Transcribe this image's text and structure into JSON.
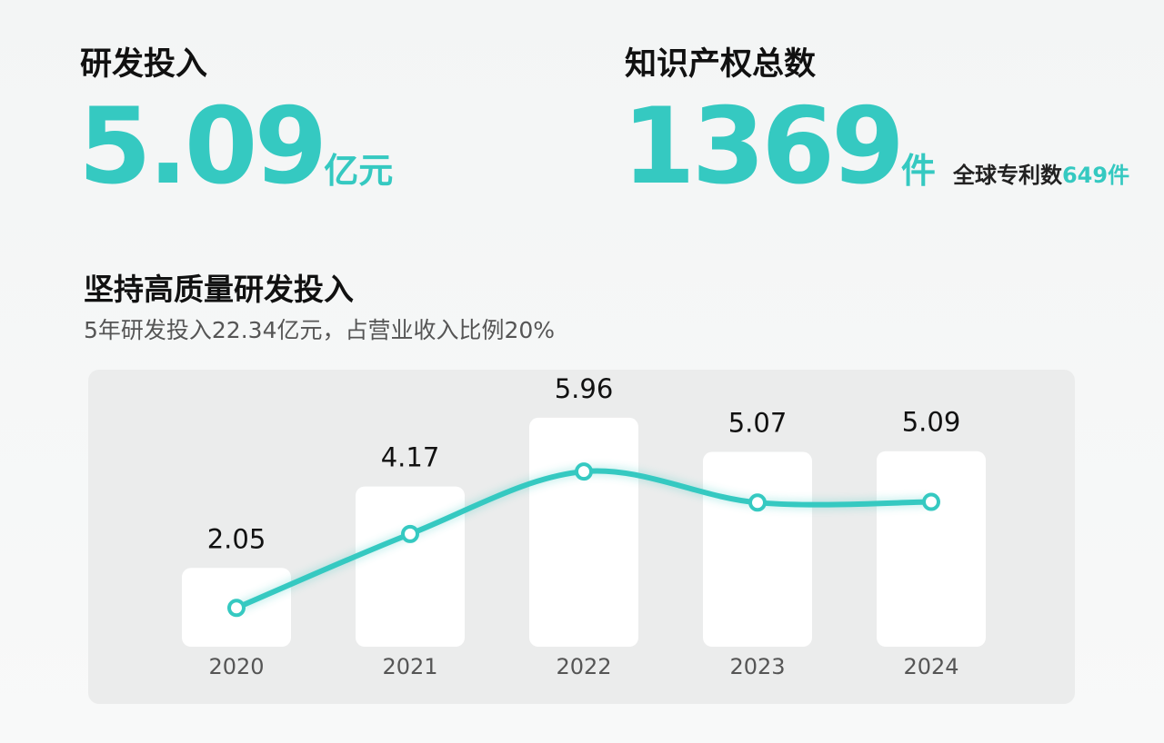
{
  "stats": [
    {
      "label": "研发投入",
      "value": "5.09",
      "unit": "亿元"
    },
    {
      "label": "知识产权总数",
      "value": "1369",
      "unit": "件",
      "note": "全球专利数",
      "note_value": "649",
      "note_unit": "件"
    }
  ],
  "chart_data": {
    "type": "bar",
    "title": "坚持高质量研发投入",
    "subtitle": "5年研发投入22.34亿元，占营业收入比例20%",
    "categories": [
      "2020",
      "2021",
      "2022",
      "2023",
      "2024"
    ],
    "values": [
      2.05,
      4.17,
      5.96,
      5.07,
      5.09
    ],
    "color": "#ffffff",
    "line_color": "#35c9c1"
  }
}
